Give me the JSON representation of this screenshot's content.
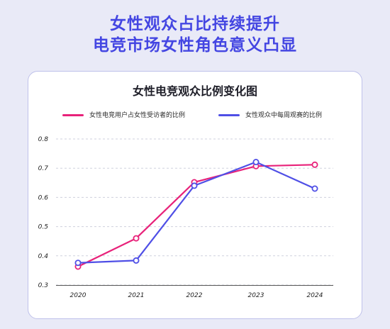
{
  "page": {
    "headline_1": "女性观众占比持续提升",
    "headline_2": "电竞市场女性角色意义凸显"
  },
  "colors": {
    "accent": "#4446e2",
    "series_1": "#e8227a",
    "series_2": "#4f4fe6"
  },
  "chart_data": {
    "type": "line",
    "title": "女性电竞观众比例变化图",
    "x": [
      "2020",
      "2021",
      "2022",
      "2023",
      "2024"
    ],
    "ylim": [
      0.3,
      0.8
    ],
    "yticks": [
      "0.3",
      "0.4",
      "0.5",
      "0.6",
      "0.7",
      "0.8"
    ],
    "grid": "horizontal",
    "legend": "top",
    "series": [
      {
        "name": "女性电竞用户占女性受访者的比例",
        "color": "#e8227a",
        "values": [
          0.363,
          0.46,
          0.652,
          0.707,
          0.712
        ]
      },
      {
        "name": "女性观众中每周观赛的比例",
        "color": "#4f4fe6",
        "values": [
          0.376,
          0.384,
          0.64,
          0.721,
          0.63
        ]
      }
    ]
  }
}
